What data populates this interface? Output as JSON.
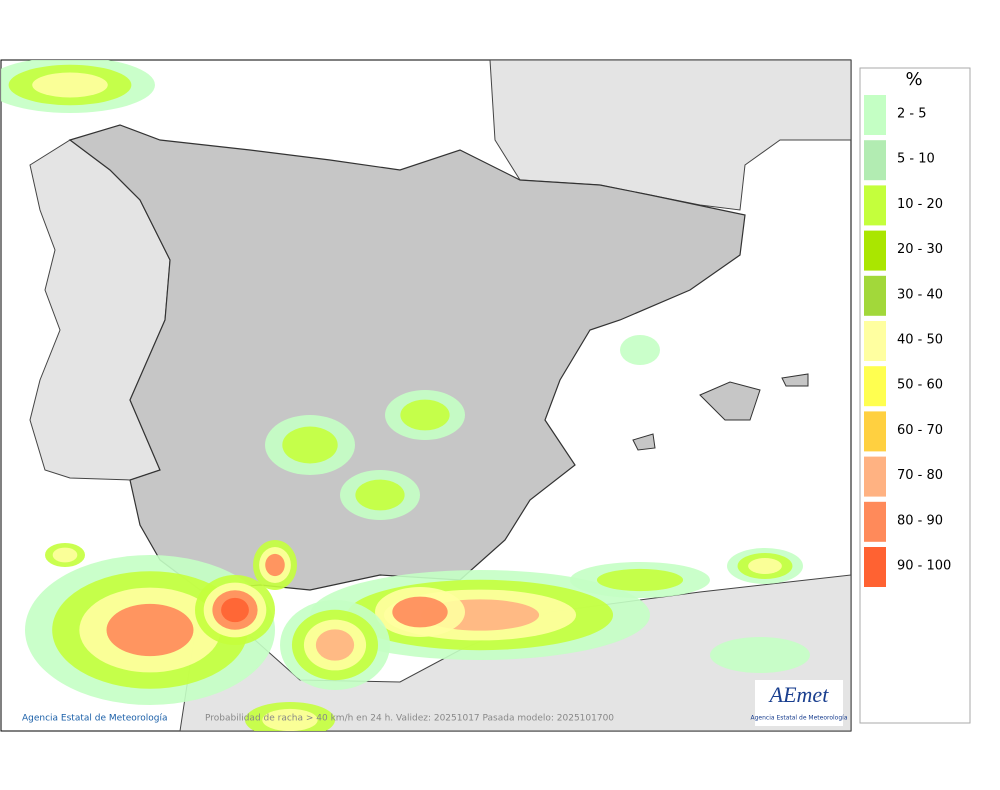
{
  "map": {
    "footer": {
      "agency": "Agencia Estatal de Meteorología",
      "caption": "Probabilidad de racha > 40 km/h en 24 h. Validez: 20251017 Pasada modelo: 2025101700"
    },
    "logo": {
      "name": "AEmet",
      "subtitle": "Agencia Estatal de Meteorología"
    }
  },
  "legend": {
    "title": "%",
    "items": [
      {
        "label": "2 - 5",
        "color": "#c4ffc4"
      },
      {
        "label": "5 - 10",
        "color": "#b2ecb2"
      },
      {
        "label": "10 - 20",
        "color": "#c4ff3c"
      },
      {
        "label": "20 - 30",
        "color": "#aae600"
      },
      {
        "label": "30 - 40",
        "color": "#a2d83a"
      },
      {
        "label": "40 - 50",
        "color": "#ffffa0"
      },
      {
        "label": "50 - 60",
        "color": "#ffff50"
      },
      {
        "label": "60 - 70",
        "color": "#ffd040"
      },
      {
        "label": "70 - 80",
        "color": "#ffb282"
      },
      {
        "label": "80 - 90",
        "color": "#ff8a5a"
      },
      {
        "label": "90 - 100",
        "color": "#ff6232"
      }
    ]
  }
}
